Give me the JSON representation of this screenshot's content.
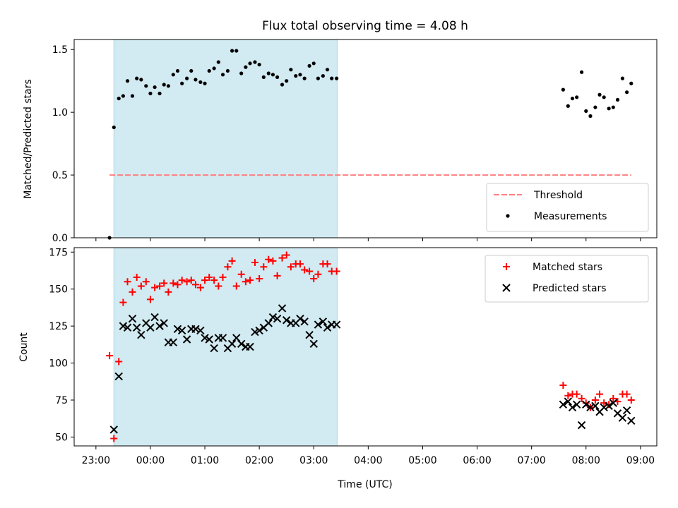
{
  "figure": {
    "title": "Flux total observing time = 4.08 h",
    "xlabel": "Time (UTC)",
    "xtick_labels": [
      "23:00",
      "00:00",
      "01:00",
      "02:00",
      "03:00",
      "04:00",
      "05:00",
      "06:00",
      "07:00",
      "08:00",
      "09:00"
    ],
    "xticks_hours": [
      23,
      24,
      25,
      26,
      27,
      28,
      29,
      30,
      31,
      32,
      33
    ],
    "xlim_hours": [
      22.6,
      33.3
    ],
    "shaded_span_hours": [
      23.33,
      27.43
    ],
    "shade_color": "#add8e6"
  },
  "chart_data": [
    {
      "type": "scatter",
      "ylabel": "Matched/Predicted stars",
      "ylim": [
        0,
        1.58
      ],
      "yticks": [
        0,
        0.5,
        1.0,
        1.5
      ],
      "ytick_labels": [
        "0.0",
        "0.5",
        "1.0",
        "1.5"
      ],
      "grid": false,
      "legend_position": "lower-right",
      "threshold": {
        "name": "Threshold",
        "y": 0.5,
        "x": [
          23.25,
          32.83
        ],
        "color": "#ff7f7f"
      },
      "series": [
        {
          "name": "Measurements",
          "color": "#000000",
          "x": [
            23.25,
            23.33,
            23.42,
            23.5,
            23.58,
            23.67,
            23.75,
            23.83,
            23.92,
            24.0,
            24.08,
            24.17,
            24.25,
            24.33,
            24.42,
            24.5,
            24.58,
            24.67,
            24.75,
            24.83,
            24.92,
            25.0,
            25.08,
            25.17,
            25.25,
            25.33,
            25.42,
            25.5,
            25.58,
            25.67,
            25.75,
            25.83,
            25.92,
            26.0,
            26.08,
            26.17,
            26.25,
            26.33,
            26.42,
            26.5,
            26.58,
            26.67,
            26.75,
            26.83,
            26.92,
            27.0,
            27.08,
            27.17,
            27.25,
            27.33,
            27.42,
            31.58,
            31.67,
            31.75,
            31.83,
            31.92,
            32.0,
            32.08,
            32.17,
            32.25,
            32.33,
            32.42,
            32.5,
            32.58,
            32.67,
            32.75,
            32.83
          ],
          "y": [
            0.0,
            0.88,
            1.11,
            1.13,
            1.25,
            1.13,
            1.27,
            1.26,
            1.21,
            1.15,
            1.2,
            1.15,
            1.22,
            1.21,
            1.3,
            1.33,
            1.23,
            1.27,
            1.33,
            1.26,
            1.24,
            1.23,
            1.33,
            1.35,
            1.4,
            1.3,
            1.33,
            1.49,
            1.49,
            1.31,
            1.36,
            1.39,
            1.4,
            1.38,
            1.28,
            1.31,
            1.3,
            1.28,
            1.22,
            1.25,
            1.34,
            1.29,
            1.3,
            1.27,
            1.37,
            1.39,
            1.27,
            1.29,
            1.34,
            1.27,
            1.27,
            1.18,
            1.05,
            1.11,
            1.12,
            1.32,
            1.01,
            0.97,
            1.04,
            1.14,
            1.12,
            1.03,
            1.04,
            1.1,
            1.27,
            1.16,
            1.23
          ]
        }
      ]
    },
    {
      "type": "scatter",
      "ylabel": "Count",
      "ylim": [
        44,
        178
      ],
      "yticks": [
        50,
        75,
        100,
        125,
        150,
        175
      ],
      "ytick_labels": [
        "50",
        "75",
        "100",
        "125",
        "150",
        "175"
      ],
      "grid": false,
      "legend_position": "upper-right",
      "series": [
        {
          "name": "Matched stars",
          "marker": "plus",
          "color": "#ff0000",
          "x": [
            23.25,
            23.33,
            23.42,
            23.5,
            23.58,
            23.67,
            23.75,
            23.83,
            23.92,
            24.0,
            24.08,
            24.17,
            24.25,
            24.33,
            24.42,
            24.5,
            24.58,
            24.67,
            24.75,
            24.83,
            24.92,
            25.0,
            25.08,
            25.17,
            25.25,
            25.33,
            25.42,
            25.5,
            25.58,
            25.67,
            25.75,
            25.83,
            25.92,
            26.0,
            26.08,
            26.17,
            26.25,
            26.33,
            26.42,
            26.5,
            26.58,
            26.67,
            26.75,
            26.83,
            26.92,
            27.0,
            27.08,
            27.17,
            27.25,
            27.33,
            27.42,
            31.58,
            31.67,
            31.75,
            31.83,
            31.92,
            32.0,
            32.08,
            32.17,
            32.25,
            32.33,
            32.42,
            32.5,
            32.58,
            32.67,
            32.75,
            32.83
          ],
          "y": [
            105,
            49,
            101,
            141,
            155,
            148,
            158,
            152,
            155,
            143,
            151,
            152,
            154,
            148,
            154,
            153,
            156,
            155,
            156,
            153,
            151,
            156,
            158,
            156,
            152,
            158,
            165,
            169,
            152,
            160,
            155,
            156,
            168,
            157,
            165,
            170,
            169,
            159,
            171,
            173,
            165,
            167,
            167,
            163,
            162,
            157,
            160,
            167,
            167,
            162,
            162,
            85,
            78,
            79,
            79,
            76,
            73,
            70,
            75,
            79,
            73,
            72,
            76,
            74,
            79,
            79,
            75
          ]
        },
        {
          "name": "Predicted stars",
          "marker": "x",
          "color": "#000000",
          "x": [
            23.25,
            23.33,
            23.42,
            23.5,
            23.58,
            23.67,
            23.75,
            23.83,
            23.92,
            24.0,
            24.08,
            24.17,
            24.25,
            24.33,
            24.42,
            24.5,
            24.58,
            24.67,
            24.75,
            24.83,
            24.92,
            25.0,
            25.08,
            25.17,
            25.25,
            25.33,
            25.42,
            25.5,
            25.58,
            25.67,
            25.75,
            25.83,
            25.92,
            26.0,
            26.08,
            26.17,
            26.25,
            26.33,
            26.42,
            26.5,
            26.58,
            26.67,
            26.75,
            26.83,
            26.92,
            27.0,
            27.08,
            27.17,
            27.25,
            27.33,
            27.42,
            31.58,
            31.67,
            31.75,
            31.83,
            31.92,
            32.0,
            32.08,
            32.17,
            32.25,
            32.33,
            32.42,
            32.5,
            32.58,
            32.67,
            32.75,
            32.83
          ],
          "y": [
            null,
            55,
            91,
            125,
            124,
            130,
            124,
            119,
            127,
            124,
            131,
            125,
            127,
            114,
            114,
            123,
            122,
            116,
            123,
            123,
            122,
            117,
            116,
            110,
            117,
            117,
            110,
            113,
            117,
            113,
            111,
            111,
            121,
            122,
            124,
            127,
            131,
            130,
            137,
            129,
            127,
            127,
            130,
            128,
            119,
            113,
            126,
            128,
            124,
            126,
            126,
            72,
            74,
            70,
            72,
            58,
            72,
            70,
            71,
            67,
            70,
            71,
            73,
            66,
            63,
            68,
            61
          ]
        }
      ]
    }
  ]
}
